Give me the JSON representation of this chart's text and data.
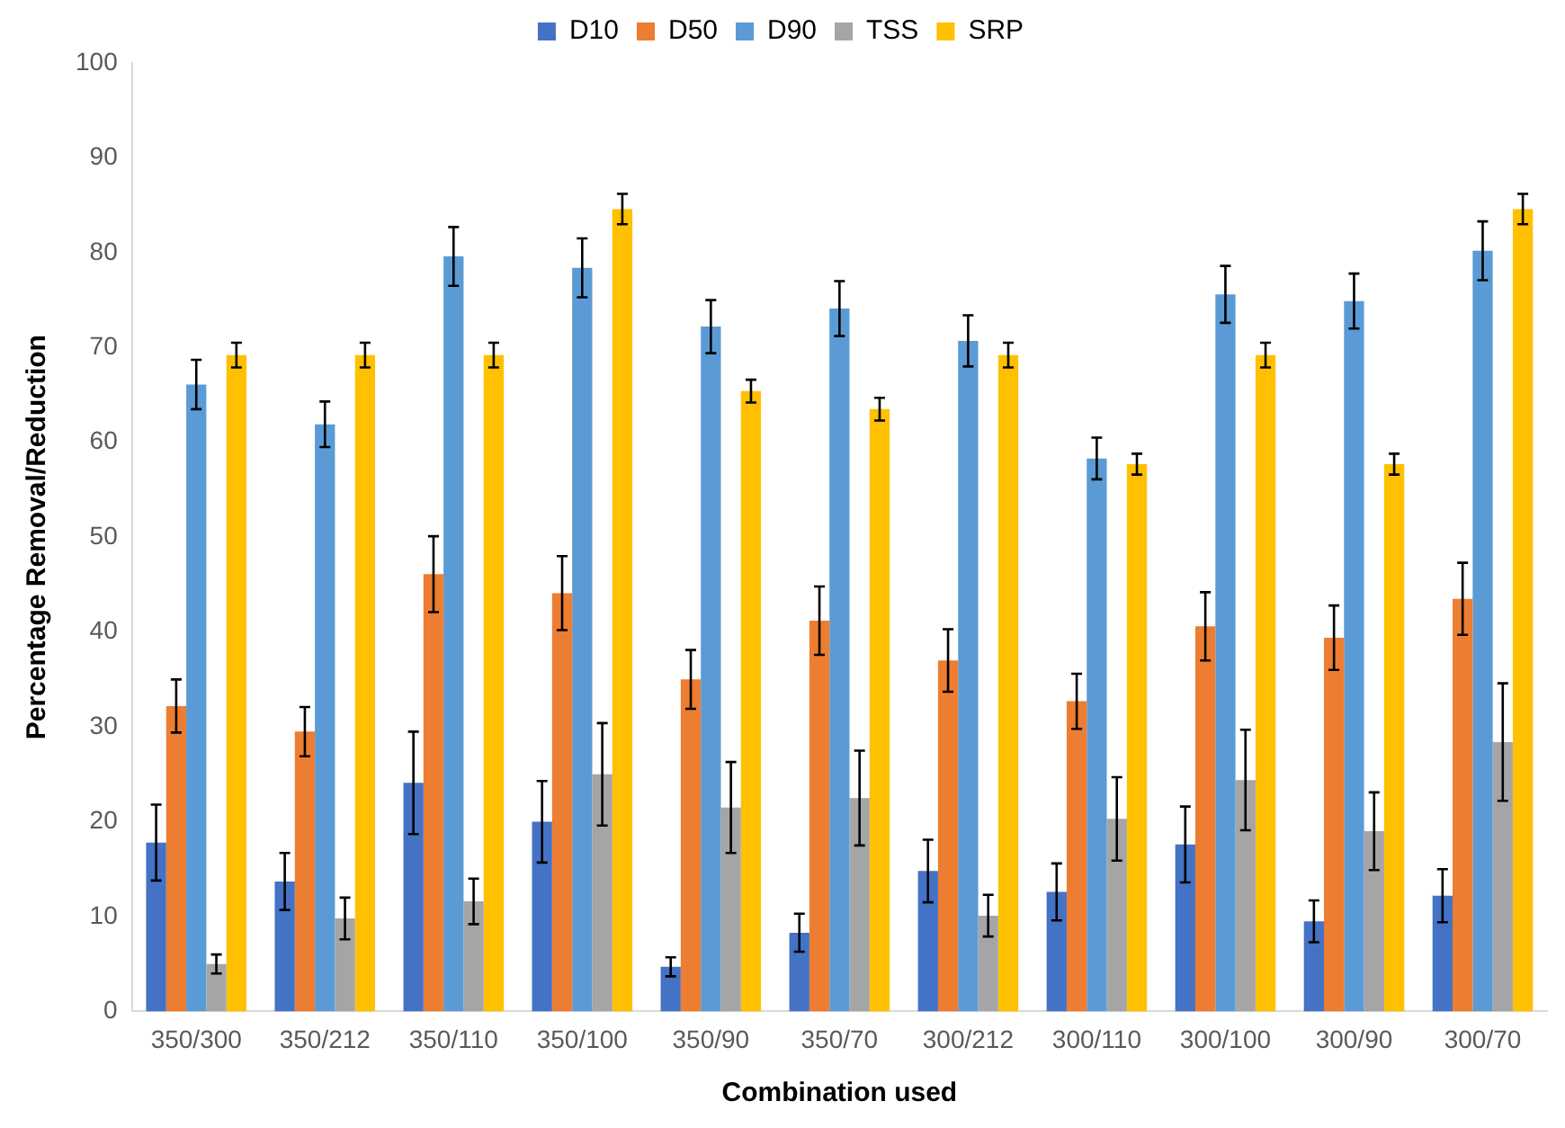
{
  "chart_data": {
    "type": "bar",
    "xlabel": "Combination used",
    "ylabel": "Percentage Removal/Reduction",
    "categories": [
      "350/300",
      "350/212",
      "350/110",
      "350/100",
      "350/90",
      "350/70",
      "300/212",
      "300/110",
      "300/100",
      "300/90",
      "300/70"
    ],
    "series": [
      {
        "name": "D10",
        "color": "#4472c4",
        "values": [
          17.8,
          13.7,
          24.1,
          20.0,
          4.7,
          8.3,
          14.8,
          12.6,
          17.6,
          9.5,
          12.2
        ],
        "errors": [
          4,
          3,
          5.4,
          4.3,
          1,
          2,
          3.3,
          3,
          4,
          2.2,
          2.8
        ]
      },
      {
        "name": "D50",
        "color": "#ed7d31",
        "values": [
          32.2,
          29.5,
          46.1,
          44.1,
          35.0,
          41.2,
          37.0,
          32.7,
          40.6,
          39.4,
          43.5
        ],
        "errors": [
          2.8,
          2.6,
          4,
          3.9,
          3.1,
          3.6,
          3.3,
          2.9,
          3.6,
          3.4,
          3.8
        ]
      },
      {
        "name": "D90",
        "color": "#5b9bd5",
        "values": [
          66.1,
          61.9,
          79.6,
          78.4,
          72.2,
          74.1,
          70.7,
          58.3,
          75.6,
          74.9,
          80.2
        ],
        "errors": [
          2.6,
          2.4,
          3.1,
          3.1,
          2.8,
          2.9,
          2.7,
          2.2,
          3,
          2.9,
          3.1
        ]
      },
      {
        "name": "TSS",
        "color": "#a5a5a5",
        "values": [
          5,
          9.8,
          11.6,
          25,
          21.5,
          22.5,
          10.1,
          20.3,
          24.4,
          19.0,
          28.4
        ],
        "errors": [
          1,
          2.2,
          2.4,
          5.4,
          4.8,
          5,
          2.2,
          4.4,
          5.3,
          4.1,
          6.2
        ]
      },
      {
        "name": "SRP",
        "color": "#ffc000",
        "values": [
          69.2,
          69.2,
          69.2,
          84.6,
          65.4,
          63.5,
          69.2,
          57.7,
          69.2,
          57.7,
          84.6
        ],
        "errors": [
          1.3,
          1.3,
          1.3,
          1.6,
          1.2,
          1.2,
          1.3,
          1.1,
          1.3,
          1.1,
          1.6
        ]
      }
    ],
    "ylim": [
      0,
      100
    ],
    "yticks": [
      0,
      10,
      20,
      30,
      40,
      50,
      60,
      70,
      80,
      90,
      100
    ],
    "grid": false,
    "legend": "top"
  }
}
